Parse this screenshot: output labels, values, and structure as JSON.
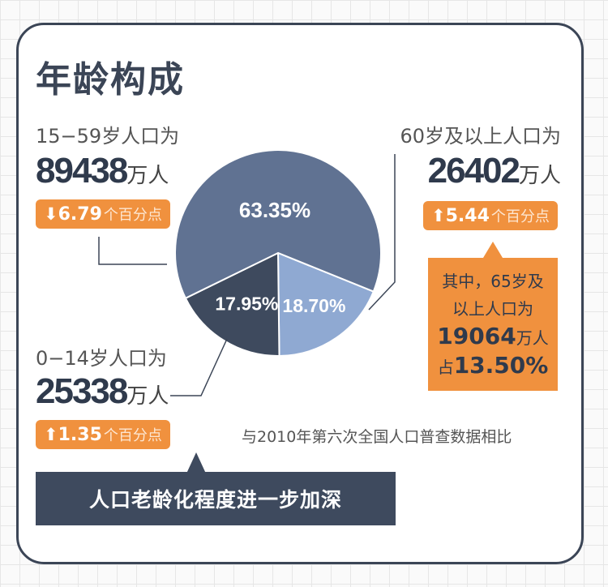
{
  "title": "年龄构成",
  "groups": {
    "working": {
      "label": "15−59岁人口为",
      "value": "89438",
      "unit": "万人",
      "change_arrow": "down-arrow-icon",
      "change": "6.79",
      "change_unit": "个百分点"
    },
    "elderly": {
      "label": "60岁及以上人口为",
      "value": "26402",
      "unit": "万人",
      "change_arrow": "up-arrow-icon",
      "change": "5.44",
      "change_unit": "个百分点"
    },
    "children": {
      "label": "0−14岁人口为",
      "value": "25338",
      "unit": "万人",
      "change_arrow": "up-arrow-icon",
      "change": "1.35",
      "change_unit": "个百分点"
    }
  },
  "over65": {
    "line1": "其中，65岁及",
    "line2": "以上人口为",
    "value": "19064",
    "unit": "万人",
    "prefix": "占",
    "share": "13.50%"
  },
  "comparison_note": "与2010年第六次全国人口普查数据相比",
  "conclusion": "人口老龄化程度进一步加深",
  "colors": {
    "orange": "#f0913e",
    "navy": "#3e4a5e"
  },
  "chart_data": {
    "type": "pie",
    "slices": [
      {
        "group": "60岁及以上",
        "value": 18.7,
        "label": "18.70%",
        "color": "#8fa9d2"
      },
      {
        "group": "0−14岁",
        "value": 17.95,
        "label": "17.95%",
        "color": "#3e4a5e"
      },
      {
        "group": "15−59岁",
        "value": 63.35,
        "label": "63.35%",
        "color": "#607292"
      }
    ]
  }
}
